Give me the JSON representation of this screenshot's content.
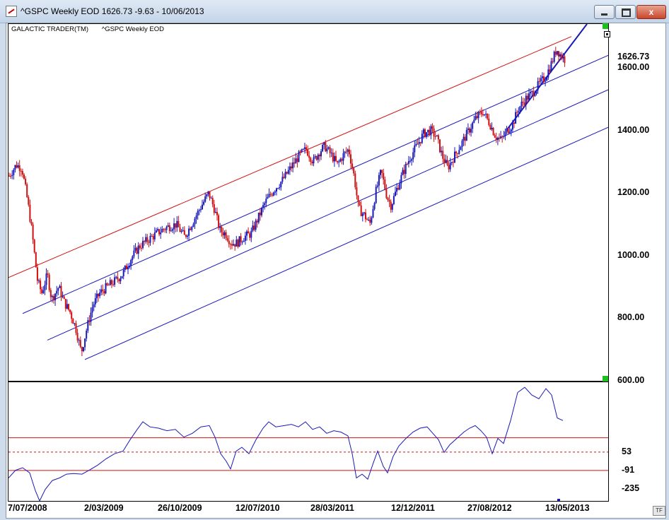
{
  "window": {
    "title": "^GSPC Weekly EOD  1626.73   -9.63 - 10/06/2013",
    "icon": "chart-app-icon",
    "min_label": "",
    "max_label": "",
    "close_label": "x"
  },
  "panel": {
    "brand": "GALACTIC TRADER(TM)",
    "series_name": "^GSPC Weekly EOD",
    "last_price_label": "1626.73",
    "tf_label": "TF"
  },
  "colors": {
    "up_bar": "#1a1ab8",
    "down_bar": "#d01010",
    "channel_red": "#d01010",
    "channel_blue": "#1a1ab8",
    "indicator_line": "#1a1ab8",
    "indicator_level": "#d01010",
    "marker_green": "#1bc21b"
  },
  "chart_data": [
    {
      "type": "candlestick",
      "subtype": "OHLC weekly bars",
      "ylim": [
        600,
        1740
      ],
      "y_ticks": [
        {
          "value": 1600,
          "label": "1600.00"
        },
        {
          "value": 1400,
          "label": "1400.00"
        },
        {
          "value": 1200,
          "label": "1200.00"
        },
        {
          "value": 1000,
          "label": "1000.00"
        },
        {
          "value": 800,
          "label": "800.00"
        },
        {
          "value": 600,
          "label": "600.00"
        }
      ],
      "last_value": 1626.73,
      "price_path": [
        {
          "x": 0,
          "y": 1255
        },
        {
          "x": 10,
          "y": 1290
        },
        {
          "x": 18,
          "y": 1280
        },
        {
          "x": 26,
          "y": 1175
        },
        {
          "x": 32,
          "y": 1080
        },
        {
          "x": 40,
          "y": 920
        },
        {
          "x": 46,
          "y": 880
        },
        {
          "x": 54,
          "y": 940
        },
        {
          "x": 60,
          "y": 860
        },
        {
          "x": 70,
          "y": 900
        },
        {
          "x": 78,
          "y": 850
        },
        {
          "x": 86,
          "y": 820
        },
        {
          "x": 94,
          "y": 770
        },
        {
          "x": 102,
          "y": 690
        },
        {
          "x": 110,
          "y": 770
        },
        {
          "x": 118,
          "y": 840
        },
        {
          "x": 128,
          "y": 880
        },
        {
          "x": 138,
          "y": 900
        },
        {
          "x": 150,
          "y": 920
        },
        {
          "x": 160,
          "y": 940
        },
        {
          "x": 172,
          "y": 990
        },
        {
          "x": 184,
          "y": 1030
        },
        {
          "x": 196,
          "y": 1050
        },
        {
          "x": 208,
          "y": 1070
        },
        {
          "x": 222,
          "y": 1090
        },
        {
          "x": 236,
          "y": 1100
        },
        {
          "x": 248,
          "y": 1060
        },
        {
          "x": 260,
          "y": 1110
        },
        {
          "x": 272,
          "y": 1160
        },
        {
          "x": 282,
          "y": 1200
        },
        {
          "x": 290,
          "y": 1150
        },
        {
          "x": 298,
          "y": 1080
        },
        {
          "x": 306,
          "y": 1070
        },
        {
          "x": 314,
          "y": 1040
        },
        {
          "x": 322,
          "y": 1040
        },
        {
          "x": 332,
          "y": 1060
        },
        {
          "x": 342,
          "y": 1070
        },
        {
          "x": 352,
          "y": 1120
        },
        {
          "x": 362,
          "y": 1170
        },
        {
          "x": 374,
          "y": 1210
        },
        {
          "x": 386,
          "y": 1240
        },
        {
          "x": 398,
          "y": 1280
        },
        {
          "x": 410,
          "y": 1320
        },
        {
          "x": 420,
          "y": 1340
        },
        {
          "x": 430,
          "y": 1300
        },
        {
          "x": 438,
          "y": 1330
        },
        {
          "x": 446,
          "y": 1350
        },
        {
          "x": 456,
          "y": 1320
        },
        {
          "x": 464,
          "y": 1290
        },
        {
          "x": 472,
          "y": 1320
        },
        {
          "x": 480,
          "y": 1340
        },
        {
          "x": 488,
          "y": 1250
        },
        {
          "x": 494,
          "y": 1150
        },
        {
          "x": 502,
          "y": 1130
        },
        {
          "x": 510,
          "y": 1100
        },
        {
          "x": 518,
          "y": 1200
        },
        {
          "x": 526,
          "y": 1270
        },
        {
          "x": 534,
          "y": 1190
        },
        {
          "x": 540,
          "y": 1160
        },
        {
          "x": 546,
          "y": 1200
        },
        {
          "x": 556,
          "y": 1260
        },
        {
          "x": 566,
          "y": 1310
        },
        {
          "x": 576,
          "y": 1350
        },
        {
          "x": 586,
          "y": 1390
        },
        {
          "x": 596,
          "y": 1400
        },
        {
          "x": 604,
          "y": 1380
        },
        {
          "x": 612,
          "y": 1320
        },
        {
          "x": 620,
          "y": 1280
        },
        {
          "x": 630,
          "y": 1320
        },
        {
          "x": 640,
          "y": 1360
        },
        {
          "x": 650,
          "y": 1400
        },
        {
          "x": 660,
          "y": 1440
        },
        {
          "x": 670,
          "y": 1460
        },
        {
          "x": 680,
          "y": 1420
        },
        {
          "x": 688,
          "y": 1380
        },
        {
          "x": 696,
          "y": 1370
        },
        {
          "x": 704,
          "y": 1400
        },
        {
          "x": 712,
          "y": 1420
        },
        {
          "x": 720,
          "y": 1470
        },
        {
          "x": 730,
          "y": 1500
        },
        {
          "x": 740,
          "y": 1520
        },
        {
          "x": 750,
          "y": 1550
        },
        {
          "x": 758,
          "y": 1570
        },
        {
          "x": 766,
          "y": 1610
        },
        {
          "x": 774,
          "y": 1660
        },
        {
          "x": 780,
          "y": 1640
        },
        {
          "x": 786,
          "y": 1626
        }
      ],
      "trend_lines": [
        {
          "name": "",
          "color": "red",
          "from": {
            "x": 0,
            "y": 930
          },
          "to": {
            "x": 796,
            "y": 1700
          }
        },
        {
          "name": "",
          "color": "blue",
          "from": {
            "x": 20,
            "y": 815
          },
          "to": {
            "x": 848,
            "y": 1640
          }
        },
        {
          "name": "",
          "color": "blue",
          "from": {
            "x": 55,
            "y": 730
          },
          "to": {
            "x": 848,
            "y": 1530
          }
        },
        {
          "name": "",
          "color": "blue",
          "from": {
            "x": 108,
            "y": 668
          },
          "to": {
            "x": 848,
            "y": 1410
          }
        },
        {
          "name": "",
          "color": "blue",
          "from": {
            "x": 704,
            "y": 1400
          },
          "to": {
            "x": 818,
            "y": 1740
          }
        }
      ]
    },
    {
      "type": "line",
      "subtype": "oscillator",
      "ylim": [
        -330,
        600
      ],
      "y_ticks": [
        {
          "value": 600,
          "label": "600.00"
        },
        {
          "value": 53,
          "label": "53"
        },
        {
          "value": -91,
          "label": "-91"
        },
        {
          "value": -235,
          "label": "-235"
        }
      ],
      "levels": [
        {
          "value": 165,
          "style": "solid"
        },
        {
          "value": 53,
          "style": "dashed"
        },
        {
          "value": -91,
          "style": "solid"
        }
      ],
      "values": [
        {
          "x": 0,
          "y": -150
        },
        {
          "x": 10,
          "y": -90
        },
        {
          "x": 20,
          "y": -70
        },
        {
          "x": 30,
          "y": -110
        },
        {
          "x": 38,
          "y": -250
        },
        {
          "x": 44,
          "y": -330
        },
        {
          "x": 52,
          "y": -240
        },
        {
          "x": 62,
          "y": -170
        },
        {
          "x": 72,
          "y": -150
        },
        {
          "x": 82,
          "y": -120
        },
        {
          "x": 92,
          "y": -115
        },
        {
          "x": 104,
          "y": -120
        },
        {
          "x": 114,
          "y": -90
        },
        {
          "x": 126,
          "y": -50
        },
        {
          "x": 138,
          "y": 0
        },
        {
          "x": 150,
          "y": 40
        },
        {
          "x": 162,
          "y": 60
        },
        {
          "x": 172,
          "y": 150
        },
        {
          "x": 182,
          "y": 230
        },
        {
          "x": 190,
          "y": 290
        },
        {
          "x": 200,
          "y": 250
        },
        {
          "x": 212,
          "y": 240
        },
        {
          "x": 224,
          "y": 220
        },
        {
          "x": 236,
          "y": 230
        },
        {
          "x": 248,
          "y": 170
        },
        {
          "x": 260,
          "y": 200
        },
        {
          "x": 272,
          "y": 250
        },
        {
          "x": 284,
          "y": 260
        },
        {
          "x": 292,
          "y": 170
        },
        {
          "x": 300,
          "y": 40
        },
        {
          "x": 308,
          "y": -20
        },
        {
          "x": 314,
          "y": -80
        },
        {
          "x": 322,
          "y": 60
        },
        {
          "x": 330,
          "y": 90
        },
        {
          "x": 340,
          "y": 40
        },
        {
          "x": 350,
          "y": 150
        },
        {
          "x": 360,
          "y": 240
        },
        {
          "x": 368,
          "y": 290
        },
        {
          "x": 378,
          "y": 250
        },
        {
          "x": 390,
          "y": 260
        },
        {
          "x": 400,
          "y": 270
        },
        {
          "x": 410,
          "y": 250
        },
        {
          "x": 420,
          "y": 290
        },
        {
          "x": 430,
          "y": 230
        },
        {
          "x": 440,
          "y": 250
        },
        {
          "x": 450,
          "y": 200
        },
        {
          "x": 460,
          "y": 220
        },
        {
          "x": 470,
          "y": 210
        },
        {
          "x": 480,
          "y": 180
        },
        {
          "x": 486,
          "y": 40
        },
        {
          "x": 492,
          "y": -150
        },
        {
          "x": 500,
          "y": -120
        },
        {
          "x": 508,
          "y": -160
        },
        {
          "x": 516,
          "y": -30
        },
        {
          "x": 522,
          "y": 60
        },
        {
          "x": 530,
          "y": -60
        },
        {
          "x": 536,
          "y": -110
        },
        {
          "x": 544,
          "y": 20
        },
        {
          "x": 552,
          "y": 100
        },
        {
          "x": 562,
          "y": 160
        },
        {
          "x": 572,
          "y": 210
        },
        {
          "x": 582,
          "y": 240
        },
        {
          "x": 592,
          "y": 250
        },
        {
          "x": 600,
          "y": 200
        },
        {
          "x": 608,
          "y": 150
        },
        {
          "x": 616,
          "y": 50
        },
        {
          "x": 624,
          "y": 110
        },
        {
          "x": 634,
          "y": 160
        },
        {
          "x": 644,
          "y": 210
        },
        {
          "x": 652,
          "y": 240
        },
        {
          "x": 660,
          "y": 260
        },
        {
          "x": 668,
          "y": 220
        },
        {
          "x": 676,
          "y": 170
        },
        {
          "x": 684,
          "y": 40
        },
        {
          "x": 692,
          "y": 160
        },
        {
          "x": 700,
          "y": 120
        },
        {
          "x": 710,
          "y": 300
        },
        {
          "x": 720,
          "y": 520
        },
        {
          "x": 730,
          "y": 560
        },
        {
          "x": 740,
          "y": 500
        },
        {
          "x": 750,
          "y": 470
        },
        {
          "x": 760,
          "y": 550
        },
        {
          "x": 768,
          "y": 500
        },
        {
          "x": 776,
          "y": 320
        },
        {
          "x": 784,
          "y": 300
        }
      ],
      "x_ticks": [
        {
          "x": 0,
          "label": "7/07/2008"
        },
        {
          "x": 108,
          "label": "2/03/2009"
        },
        {
          "x": 212,
          "label": "26/10/2009"
        },
        {
          "x": 322,
          "label": "12/07/2010"
        },
        {
          "x": 428,
          "label": "28/03/2011"
        },
        {
          "x": 542,
          "label": "12/12/2011"
        },
        {
          "x": 650,
          "label": "27/08/2012"
        },
        {
          "x": 760,
          "label": "13/05/2013"
        }
      ]
    }
  ]
}
